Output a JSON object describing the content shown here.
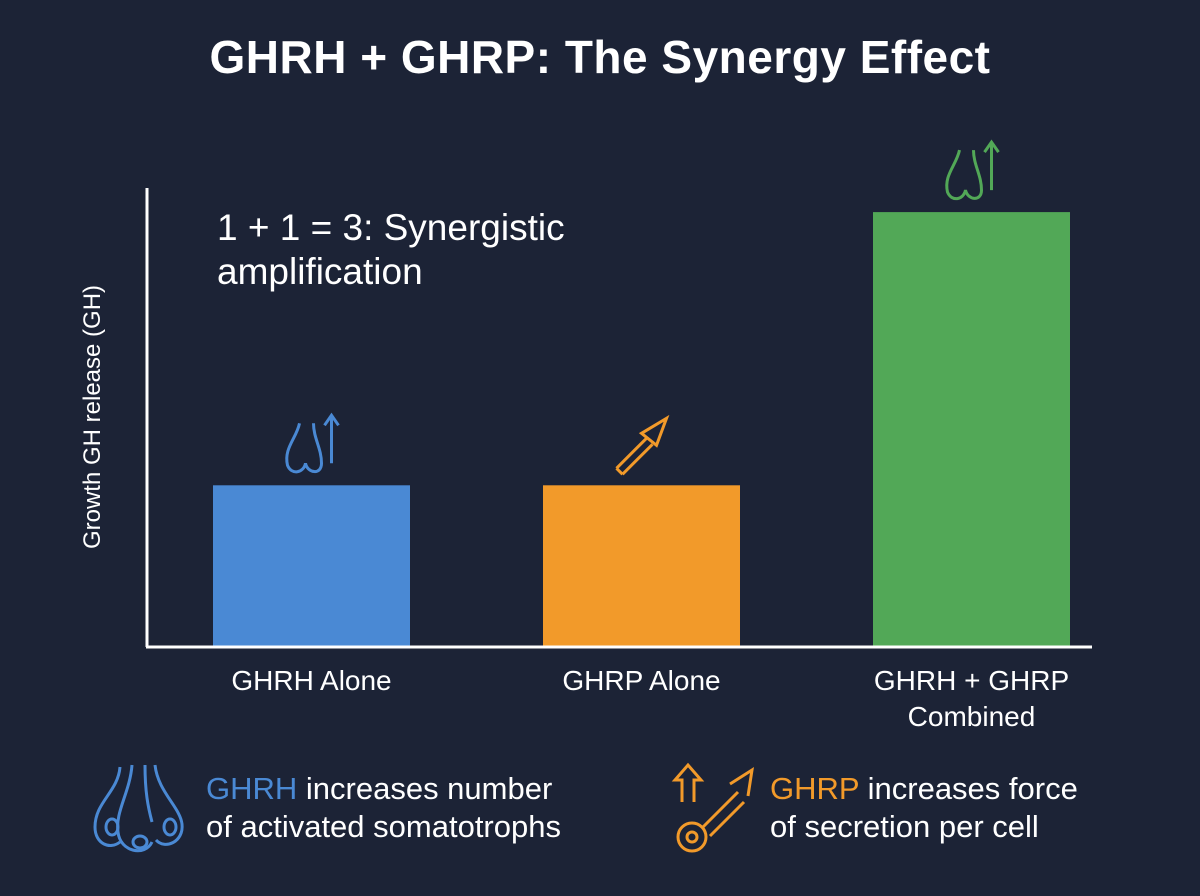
{
  "chart_data": {
    "type": "bar",
    "title": "GHRH + GHRP: The Synergy Effect",
    "ylabel": "Growth GH release (GH)",
    "xlabel": "",
    "ylim": [
      0,
      2.85
    ],
    "grid": false,
    "annotation": "1 + 1 = 3: Synergistic amplification",
    "categories": [
      "GHRH Alone",
      "GHRP Alone",
      "GHRH + GHRP Combined"
    ],
    "values": [
      1,
      1,
      2.7
    ],
    "colors": [
      "#4a89d4",
      "#f29a2a",
      "#52a857"
    ],
    "bar_icons": [
      "somatotroph-up-arrow-icon",
      "diagonal-arrow-icon",
      "somatotroph-up-arrow-icon"
    ]
  },
  "legend": [
    {
      "key": "GHRH",
      "text": " increases number",
      "text2": "of activated somatotrophs",
      "color": "#4a89d4",
      "icon": "somatotroph-cells-icon"
    },
    {
      "key": "GHRP",
      "text": " increases force",
      "text2": "of secretion per cell",
      "color": "#f29a2a",
      "icon": "secretion-force-arrow-icon"
    }
  ],
  "colors": {
    "background": "#1c2336",
    "axis": "#ffffff",
    "text": "#ffffff"
  }
}
